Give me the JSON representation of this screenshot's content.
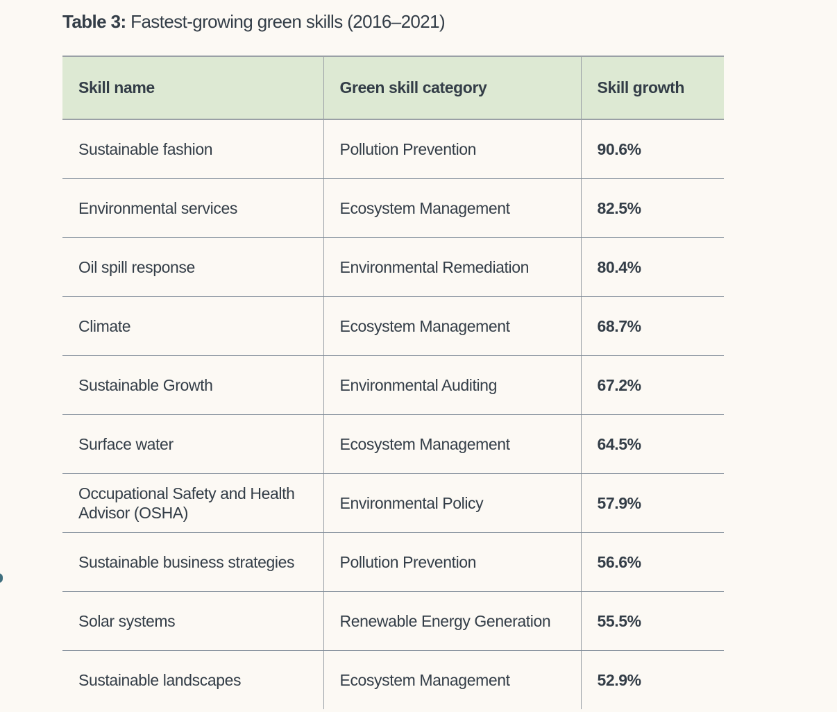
{
  "title": {
    "label": "Table 3:",
    "text": "Fastest-growing green skills (2016–2021)"
  },
  "table": {
    "headers": [
      "Skill name",
      "Green skill category",
      "Skill growth"
    ],
    "rows": [
      [
        "Sustainable fashion",
        "Pollution Prevention",
        "90.6%"
      ],
      [
        "Environmental services",
        "Ecosystem Management",
        "82.5%"
      ],
      [
        "Oil spill response",
        "Environmental Remediation",
        "80.4%"
      ],
      [
        "Climate",
        "Ecosystem Management",
        "68.7%"
      ],
      [
        "Sustainable Growth",
        "Environmental Auditing",
        "67.2%"
      ],
      [
        "Surface water",
        "Ecosystem Management",
        "64.5%"
      ],
      [
        "Occupational Safety and Health Advisor (OSHA)",
        "Environmental Policy",
        "57.9%"
      ],
      [
        "Sustainable business strategies",
        "Pollution Prevention",
        "56.6%"
      ],
      [
        "Solar systems",
        "Renewable Energy Generation",
        "55.5%"
      ],
      [
        "Sustainable landscapes",
        "Ecosystem Management",
        "52.9%"
      ]
    ]
  },
  "colors": {
    "header_bg": "#dde9d3",
    "page_bg": "#fcf9f4",
    "text": "#333d47"
  }
}
